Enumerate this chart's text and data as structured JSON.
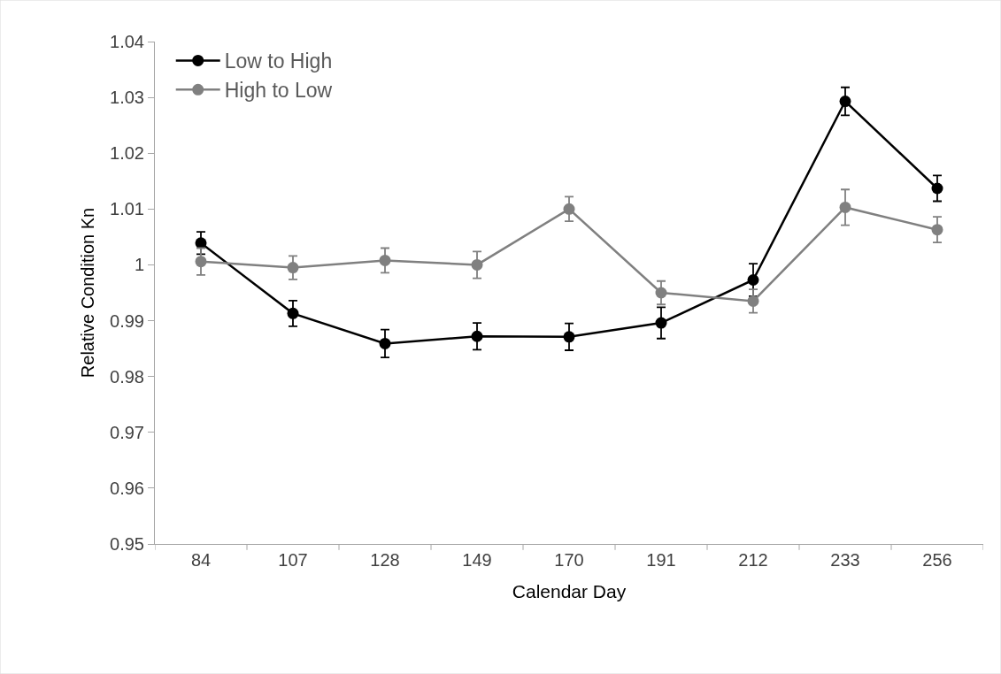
{
  "chart_data": {
    "type": "line",
    "xlabel": "Calendar Day",
    "ylabel": "Relative Condition Kn",
    "categories": [
      "84",
      "107",
      "128",
      "149",
      "170",
      "191",
      "212",
      "233",
      "256"
    ],
    "series": [
      {
        "name": "Low to High",
        "color": "#000000",
        "values": [
          1.0039,
          0.9913,
          0.9859,
          0.9872,
          0.9871,
          0.9896,
          0.9973,
          1.0293,
          1.0137
        ],
        "errors": [
          0.002,
          0.0023,
          0.0025,
          0.0024,
          0.0024,
          0.0028,
          0.0029,
          0.0025,
          0.0023
        ]
      },
      {
        "name": "High to Low",
        "color": "#808080",
        "values": [
          1.0006,
          0.9995,
          1.0008,
          1.0,
          1.01,
          0.995,
          0.9935,
          1.0103,
          1.0063
        ],
        "errors": [
          0.0024,
          0.0021,
          0.0022,
          0.0024,
          0.0022,
          0.0021,
          0.0021,
          0.0032,
          0.0023
        ]
      }
    ],
    "ylim": [
      0.95,
      1.04
    ],
    "yticks": [
      0.95,
      0.96,
      0.97,
      0.98,
      0.99,
      1,
      1.01,
      1.02,
      1.03,
      1.04
    ],
    "legend": "top left",
    "marker": "circle",
    "line_style": "solid"
  }
}
